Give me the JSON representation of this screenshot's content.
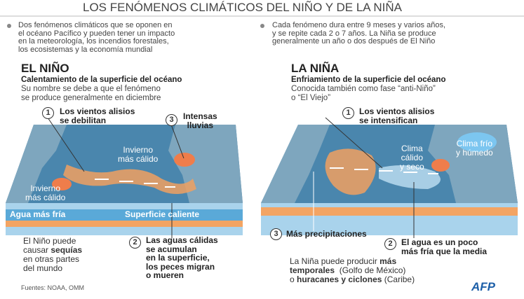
{
  "title": "LOS FENÓMENOS CLIMÁTICOS DEL NIÑO Y DE LA NIÑA",
  "intro": {
    "left": [
      "Dos fenómenos climáticos que se oponen en",
      "el océano Pacífico y pueden tener un impacto",
      "en la meteorología, los incendios forestales,",
      "los ecosistemas y la economía mundial"
    ],
    "right": [
      "Cada fenómeno dura entre 9 meses y varios años,",
      "y se repite cada 2 o 7 años. La Niña se produce",
      "generalmente un año o dos después de El Niño"
    ]
  },
  "panels": [
    {
      "heading": "EL NIÑO",
      "subtitle": "Calentamiento de la superficie del océano",
      "description": [
        "Su nombre se debe a que el fenómeno",
        "se produce generalmente en diciembre"
      ],
      "callouts": [
        {
          "number": "1",
          "lines": [
            "Los vientos alisios",
            "se debilitan"
          ]
        },
        {
          "number": "3",
          "lines": [
            "Intensas",
            "lluvias"
          ]
        },
        {
          "number": "2",
          "lines": [
            "Las aguas cálidas",
            "se acumulan",
            "en la superficie,",
            "los peces migran",
            "o mueren"
          ]
        }
      ],
      "map_labels": [
        [
          "Invierno",
          "más cálido"
        ],
        [
          "Invierno",
          "más cálido"
        ]
      ],
      "strip_labels": [
        "Agua más fría",
        "Superficie caliente"
      ],
      "note": [
        [
          {
            "text": "El Niño puede"
          }
        ],
        [
          {
            "text": "causar "
          },
          {
            "text": "sequías",
            "bold": true
          }
        ],
        [
          {
            "text": "en otras partes"
          }
        ],
        [
          {
            "text": "del mundo"
          }
        ]
      ]
    },
    {
      "heading": "LA NIÑA",
      "subtitle": "Enfriamiento de la superficie del océano",
      "description": [
        "Conocida también como fase “anti-Niño”",
        "o “El Viejo”"
      ],
      "callouts": [
        {
          "number": "1",
          "lines": [
            "Los vientos alisios",
            "se intensifican"
          ]
        },
        {
          "number": "3",
          "lines": [
            "Más precipitaciones"
          ]
        },
        {
          "number": "2",
          "lines": [
            "El agua es un poco",
            "más fría que la media"
          ]
        }
      ],
      "map_labels": [
        [
          "Clima",
          "cálido",
          "y seco"
        ],
        [
          "Clima frío",
          "y húmedo"
        ]
      ],
      "note": [
        [
          {
            "text": "La Niña puede producir "
          },
          {
            "text": "más",
            "bold": true
          }
        ],
        [
          {
            "text": "temporales",
            "bold": true
          },
          {
            "text": "  (Golfo de México)"
          }
        ],
        [
          {
            "text": "o "
          },
          {
            "text": "huracanes y ciclones",
            "bold": true
          },
          {
            "text": " (Caribe)"
          }
        ]
      ]
    }
  ],
  "source": "Fuentes: NOAA, OMM",
  "logo": "AFP"
}
